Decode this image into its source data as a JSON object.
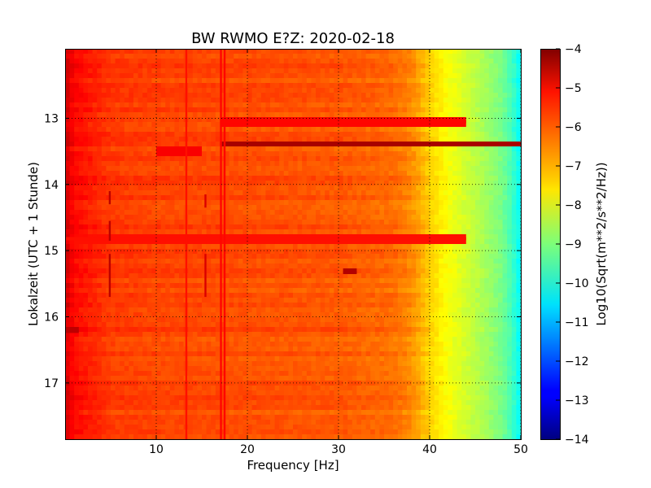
{
  "chart_data": {
    "type": "heatmap",
    "title": "BW RWMO E?Z: 2020-02-18",
    "xlabel": "Frequency [Hz]",
    "ylabel": "Lokalzeit (UTC + 1 Stunde)",
    "xlim": [
      0,
      50
    ],
    "ylim": [
      17.85,
      11.95
    ],
    "y_inverted": true,
    "grid": true,
    "x_ticks": [
      10,
      20,
      30,
      40,
      50
    ],
    "x_tick_labels": [
      "10",
      "20",
      "30",
      "40",
      "50"
    ],
    "y_ticks": [
      13,
      14,
      15,
      16,
      17
    ],
    "y_tick_labels": [
      "13",
      "14",
      "15",
      "16",
      "17"
    ],
    "colormap": "jet",
    "colorbar": {
      "label": "Log10(Sqrt(m**2/s**2/Hz))",
      "range": [
        -14,
        -4
      ],
      "ticks": [
        -4,
        -5,
        -6,
        -7,
        -8,
        -9,
        -10,
        -11,
        -12,
        -13,
        -14
      ],
      "tick_labels": [
        "−4",
        "−5",
        "−6",
        "−7",
        "−8",
        "−9",
        "−10",
        "−11",
        "−12",
        "−13",
        "−14"
      ]
    },
    "spectrum_profile": {
      "frequency_hz": [
        0,
        1,
        5,
        10,
        20,
        30,
        36,
        38,
        40,
        42,
        44,
        46,
        48,
        49,
        50
      ],
      "log10_amplitude": [
        -4.8,
        -5.3,
        -5.8,
        -5.9,
        -6.0,
        -6.1,
        -6.3,
        -6.6,
        -7.3,
        -7.8,
        -8.2,
        -8.6,
        -9.1,
        -9.6,
        -10.3
      ]
    },
    "vertical_lines_hz": [
      {
        "freq": 4.9,
        "from_hour": 14.1,
        "to_hour": 14.3,
        "level": -4.6
      },
      {
        "freq": 4.9,
        "from_hour": 14.55,
        "to_hour": 14.85,
        "level": -4.6
      },
      {
        "freq": 4.9,
        "from_hour": 15.05,
        "to_hour": 15.7,
        "level": -4.6
      },
      {
        "freq": 13.3,
        "from_hour": 11.95,
        "to_hour": 17.85,
        "level": -5.4
      },
      {
        "freq": 15.4,
        "from_hour": 14.15,
        "to_hour": 14.35,
        "level": -4.9
      },
      {
        "freq": 15.4,
        "from_hour": 15.05,
        "to_hour": 15.7,
        "level": -4.9
      },
      {
        "freq": 17.1,
        "from_hour": 11.95,
        "to_hour": 17.85,
        "level": -5.3
      },
      {
        "freq": 17.5,
        "from_hour": 11.95,
        "to_hour": 17.85,
        "level": -5.3
      }
    ],
    "horizontal_bands": [
      {
        "hour": 13.05,
        "from_hz": 17,
        "to_hz": 44,
        "level": -5.3
      },
      {
        "hour": 13.38,
        "from_hz": 17,
        "to_hz": 50,
        "level": -4.4
      },
      {
        "hour": 13.5,
        "from_hz": 10,
        "to_hz": 15,
        "level": -5.2
      },
      {
        "hour": 14.82,
        "from_hz": 0,
        "to_hz": 44,
        "level": -5.4
      },
      {
        "hour": 16.22,
        "from_hz": 0,
        "to_hz": 1.5,
        "level": -4.6
      },
      {
        "hour": 15.33,
        "from_hz": 30.5,
        "to_hz": 32,
        "level": -4.5
      }
    ]
  }
}
